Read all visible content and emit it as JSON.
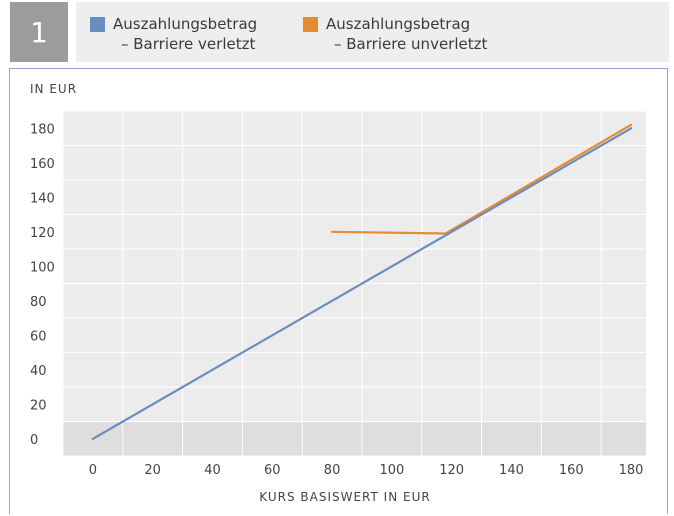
{
  "figure_number": "1",
  "colors": {
    "series_1": "#6a8cc0",
    "series_2": "#e58b32",
    "plot_band": "#ececec",
    "grid": "#ffffff",
    "frame": "#8fa7c8"
  },
  "chart_data": {
    "type": "line",
    "title": "",
    "xlabel": "KURS BASISWERT IN EUR",
    "ylabel": "IN EUR",
    "xlim": [
      -10,
      185
    ],
    "ylim": [
      -10,
      190
    ],
    "x_ticks": [
      0,
      20,
      40,
      60,
      80,
      100,
      120,
      140,
      160,
      180
    ],
    "y_ticks": [
      0,
      20,
      40,
      60,
      80,
      100,
      120,
      140,
      160,
      180
    ],
    "grid": true,
    "legend_position": "top",
    "series": [
      {
        "name_line1": "Auszahlungsbetrag",
        "name_line2": "– Barriere verletzt",
        "x": [
          0,
          180
        ],
        "y": [
          0,
          180
        ]
      },
      {
        "name_line1": "Auszahlungsbetrag",
        "name_line2": "– Barriere unverletzt",
        "x": [
          80,
          118,
          180
        ],
        "y": [
          120,
          119,
          182
        ]
      }
    ]
  }
}
